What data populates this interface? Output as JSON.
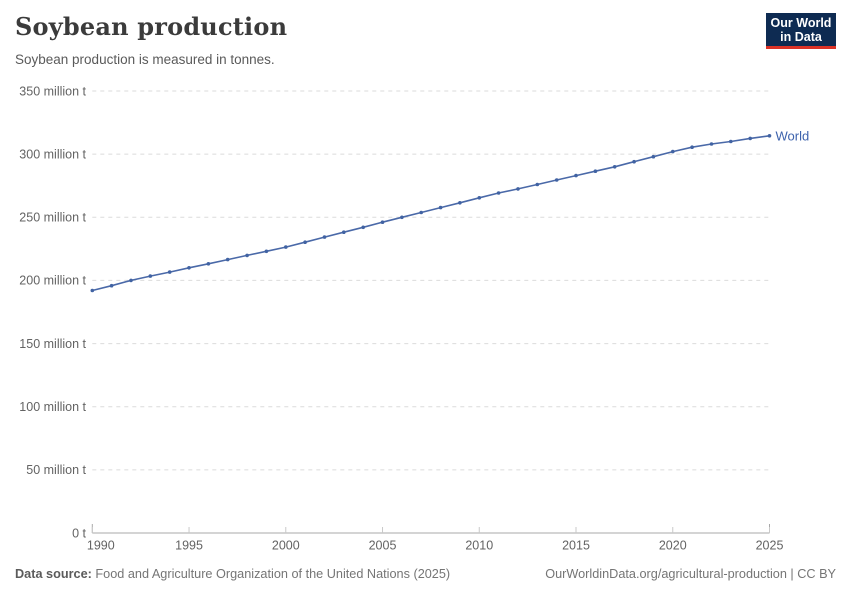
{
  "header": {
    "title": "Soybean production",
    "subtitle": "Soybean production is measured in tonnes."
  },
  "logo": {
    "line1": "Our World",
    "line2": "in Data"
  },
  "colors": {
    "line": "#4a69a8",
    "marker": "#4163a3",
    "series_label": "#3e63ad",
    "logo_bg": "#0e2b52",
    "logo_accent": "#dc3226",
    "gridline": "#dbdbdb",
    "axis": "#a8a8a8",
    "tick": "#c9c9c9",
    "tick_text": "#636363"
  },
  "chart_data": {
    "type": "line",
    "title": "Soybean production",
    "xlabel": "",
    "ylabel": "",
    "unit": "million tonnes",
    "xlim": [
      1990,
      2025
    ],
    "ylim": [
      0,
      350
    ],
    "grid": "horizontal-dashed",
    "legend_position": "end-of-line",
    "x_ticks": [
      1990,
      1995,
      2000,
      2005,
      2010,
      2015,
      2020,
      2025
    ],
    "y_ticks": [
      {
        "value": 0,
        "label": "0 t"
      },
      {
        "value": 50,
        "label": "50 million t"
      },
      {
        "value": 100,
        "label": "100 million t"
      },
      {
        "value": 150,
        "label": "150 million t"
      },
      {
        "value": 200,
        "label": "200 million t"
      },
      {
        "value": 250,
        "label": "250 million t"
      },
      {
        "value": 300,
        "label": "300 million t"
      },
      {
        "value": 350,
        "label": "350 million t"
      }
    ],
    "series": [
      {
        "name": "World",
        "x": [
          1990,
          1991,
          1992,
          1993,
          1994,
          1995,
          1996,
          1997,
          1998,
          1999,
          2000,
          2001,
          2002,
          2003,
          2004,
          2005,
          2006,
          2007,
          2008,
          2009,
          2010,
          2011,
          2012,
          2013,
          2014,
          2015,
          2016,
          2017,
          2018,
          2019,
          2020,
          2021,
          2022,
          2023,
          2024,
          2025
        ],
        "values": [
          192.0,
          195.8,
          200.0,
          203.4,
          206.6,
          210.0,
          213.2,
          216.5,
          219.8,
          223.1,
          226.4,
          230.3,
          234.3,
          238.2,
          242.1,
          246.1,
          250.0,
          253.8,
          257.7,
          261.5,
          265.4,
          269.2,
          272.5,
          276.0,
          279.5,
          283.0,
          286.5,
          290.0,
          294.0,
          298.0,
          302.0,
          305.5,
          308.0,
          310.0,
          312.5,
          314.5
        ]
      }
    ]
  },
  "footer": {
    "source_label": "Data source:",
    "source_text": "Food and Agriculture Organization of the United Nations (2025)",
    "credit": "OurWorldinData.org/agricultural-production | CC BY"
  }
}
